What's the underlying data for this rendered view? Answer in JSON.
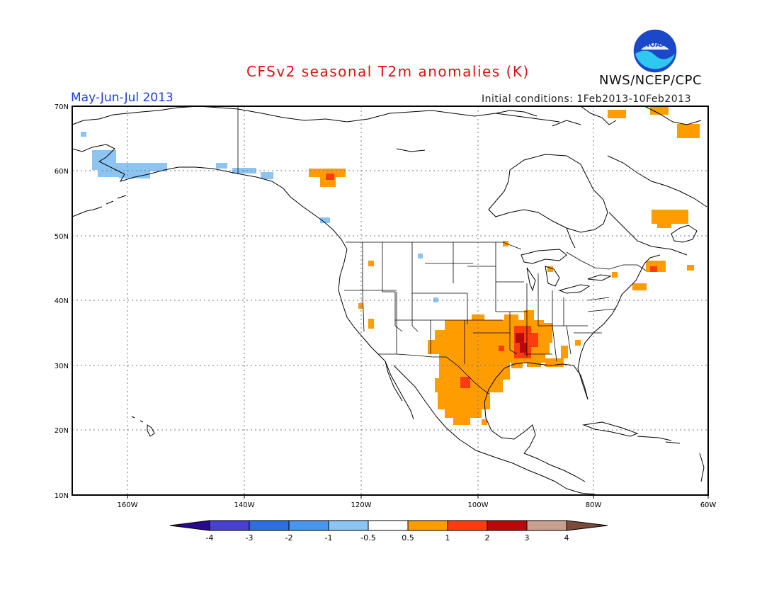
{
  "header": {
    "title": "CFSv2 seasonal T2m anomalies (K)",
    "period": "May-Jun-Jul 2013",
    "initial_conditions": "Initial conditions: 1Feb2013-10Feb2013",
    "agency": "NWS/NCEP/CPC",
    "logo_text": "NOAA"
  },
  "axes": {
    "lon_labels": [
      "160W",
      "140W",
      "120W",
      "100W",
      "80W",
      "60W"
    ],
    "lat_labels": [
      "70N",
      "60N",
      "50N",
      "40N",
      "30N",
      "20N",
      "10N"
    ]
  },
  "colorbar": {
    "tick_labels": [
      "-4",
      "-3",
      "-2",
      "-1",
      "-0.5",
      "0.5",
      "1",
      "2",
      "3",
      "4"
    ],
    "colors": [
      "#2a0a8c",
      "#4840d2",
      "#2e6ee0",
      "#4896ee",
      "#8cc4f2",
      "#ffffff",
      "#ff9d00",
      "#ff3c10",
      "#b80a0a",
      "#c8a090",
      "#7a4a3a"
    ]
  },
  "colors": {
    "title": "#e01010",
    "period": "#1a3fe0",
    "coast": "#000000",
    "grid": "#888888"
  }
}
